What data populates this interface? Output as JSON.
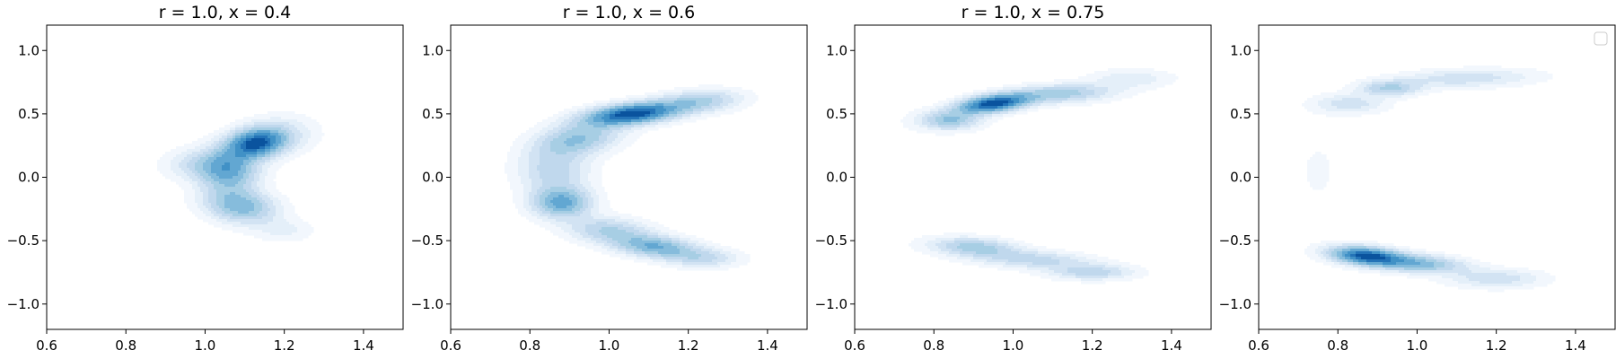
{
  "chart_data": [
    {
      "type": "contour",
      "title": "r = 1.0, x = 0.4",
      "xlim": [
        0.6,
        1.5
      ],
      "ylim": [
        -1.2,
        1.2
      ],
      "xticks": [
        "0.6",
        "0.8",
        "1.0",
        "1.2",
        "1.4"
      ],
      "yticks": [
        "−1.0",
        "−0.5",
        "0.0",
        "0.5",
        "1.0"
      ],
      "legend": false,
      "kde_components": [
        {
          "x": 1.13,
          "y": 0.27,
          "sx": 0.05,
          "sy": 0.08,
          "rho": 0.2,
          "w": 1.0
        },
        {
          "x": 1.06,
          "y": 0.05,
          "sx": 0.05,
          "sy": 0.12,
          "rho": 0.0,
          "w": 0.6
        },
        {
          "x": 1.09,
          "y": -0.23,
          "sx": 0.06,
          "sy": 0.09,
          "rho": -0.2,
          "w": 0.55
        },
        {
          "x": 0.99,
          "y": 0.1,
          "sx": 0.06,
          "sy": 0.08,
          "rho": 0.0,
          "w": 0.25
        },
        {
          "x": 1.2,
          "y": 0.35,
          "sx": 0.06,
          "sy": 0.1,
          "rho": 0.0,
          "w": 0.15
        },
        {
          "x": 1.2,
          "y": -0.42,
          "sx": 0.05,
          "sy": 0.06,
          "rho": 0.0,
          "w": 0.12
        }
      ]
    },
    {
      "type": "contour",
      "title": "r = 1.0, x = 0.6",
      "xlim": [
        0.6,
        1.5
      ],
      "ylim": [
        -1.2,
        1.2
      ],
      "xticks": [
        "0.6",
        "0.8",
        "1.0",
        "1.2",
        "1.4"
      ],
      "yticks": [
        "−1.0",
        "−0.5",
        "0.0",
        "0.5",
        "1.0"
      ],
      "legend": false,
      "kde_components": [
        {
          "x": 1.06,
          "y": 0.5,
          "sx": 0.08,
          "sy": 0.06,
          "rho": 0.4,
          "w": 1.0
        },
        {
          "x": 0.92,
          "y": 0.3,
          "sx": 0.07,
          "sy": 0.09,
          "rho": 0.3,
          "w": 0.45
        },
        {
          "x": 1.23,
          "y": 0.6,
          "sx": 0.07,
          "sy": 0.06,
          "rho": 0.2,
          "w": 0.35
        },
        {
          "x": 0.88,
          "y": -0.2,
          "sx": 0.05,
          "sy": 0.08,
          "rho": 0.0,
          "w": 0.6
        },
        {
          "x": 0.86,
          "y": 0.05,
          "sx": 0.06,
          "sy": 0.12,
          "rho": 0.0,
          "w": 0.3
        },
        {
          "x": 1.0,
          "y": -0.42,
          "sx": 0.07,
          "sy": 0.07,
          "rho": -0.2,
          "w": 0.35
        },
        {
          "x": 1.12,
          "y": -0.55,
          "sx": 0.07,
          "sy": 0.06,
          "rho": -0.3,
          "w": 0.55
        },
        {
          "x": 1.24,
          "y": -0.64,
          "sx": 0.06,
          "sy": 0.05,
          "rho": 0.0,
          "w": 0.25
        }
      ]
    },
    {
      "type": "contour",
      "title": "r = 1.0, x = 0.75",
      "xlim": [
        0.6,
        1.5
      ],
      "ylim": [
        -1.2,
        1.2
      ],
      "xticks": [
        "0.6",
        "0.8",
        "1.0",
        "1.2",
        "1.4"
      ],
      "yticks": [
        "−1.0",
        "−0.5",
        "0.0",
        "0.5",
        "1.0"
      ],
      "legend": false,
      "kde_components": [
        {
          "x": 0.95,
          "y": 0.58,
          "sx": 0.06,
          "sy": 0.05,
          "rho": 0.4,
          "w": 1.0
        },
        {
          "x": 0.84,
          "y": 0.45,
          "sx": 0.05,
          "sy": 0.05,
          "rho": 0.0,
          "w": 0.45
        },
        {
          "x": 1.12,
          "y": 0.66,
          "sx": 0.09,
          "sy": 0.05,
          "rho": 0.2,
          "w": 0.4
        },
        {
          "x": 1.3,
          "y": 0.78,
          "sx": 0.07,
          "sy": 0.05,
          "rho": 0.0,
          "w": 0.15
        },
        {
          "x": 0.9,
          "y": -0.55,
          "sx": 0.07,
          "sy": 0.05,
          "rho": -0.2,
          "w": 0.4
        },
        {
          "x": 1.05,
          "y": -0.65,
          "sx": 0.1,
          "sy": 0.05,
          "rho": -0.3,
          "w": 0.3
        },
        {
          "x": 1.2,
          "y": -0.75,
          "sx": 0.07,
          "sy": 0.04,
          "rho": 0.0,
          "w": 0.3
        },
        {
          "x": 0.72,
          "y": 0.0,
          "sx": 0.06,
          "sy": 0.35,
          "rho": 0.0,
          "w": 0.04
        }
      ]
    },
    {
      "type": "contour",
      "title": "",
      "xlim": [
        0.6,
        1.5
      ],
      "ylim": [
        -1.2,
        1.2
      ],
      "xticks": [
        "0.6",
        "0.8",
        "1.0",
        "1.2",
        "1.4"
      ],
      "yticks": [
        "−1.0",
        "−0.5",
        "0.0",
        "0.5",
        "1.0"
      ],
      "legend": true,
      "legend_position": "top-right",
      "kde_components": [
        {
          "x": 0.87,
          "y": -0.62,
          "sx": 0.06,
          "sy": 0.05,
          "rho": -0.3,
          "w": 1.0
        },
        {
          "x": 1.0,
          "y": -0.68,
          "sx": 0.08,
          "sy": 0.05,
          "rho": -0.3,
          "w": 0.55
        },
        {
          "x": 1.2,
          "y": -0.8,
          "sx": 0.08,
          "sy": 0.05,
          "rho": 0.0,
          "w": 0.25
        },
        {
          "x": 0.93,
          "y": 0.7,
          "sx": 0.05,
          "sy": 0.04,
          "rho": 0.0,
          "w": 0.4
        },
        {
          "x": 0.83,
          "y": 0.58,
          "sx": 0.06,
          "sy": 0.05,
          "rho": 0.0,
          "w": 0.25
        },
        {
          "x": 1.12,
          "y": 0.78,
          "sx": 0.12,
          "sy": 0.05,
          "rho": 0.2,
          "w": 0.25
        },
        {
          "x": 0.75,
          "y": 0.05,
          "sx": 0.06,
          "sy": 0.3,
          "rho": 0.0,
          "w": 0.05
        }
      ]
    }
  ]
}
